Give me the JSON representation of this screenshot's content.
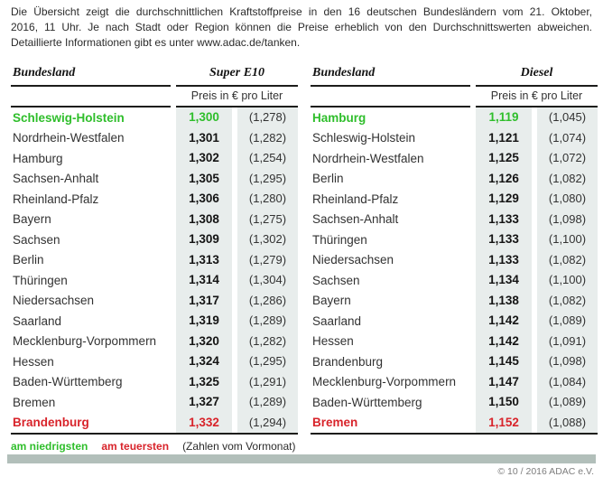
{
  "intro": {
    "lines": [
      "Die Übersicht zeigt die durchschnittlichen Kraftstoffpreise in den 16 deutschen Bundesländern vom 21. Oktober,",
      "2016, 11 Uhr. Je nach Stadt oder Region können die Preise erheblich von den Durchschnittswerten abweichen.",
      "Detaillierte Informationen gibt es unter www.adac.de/tanken."
    ]
  },
  "legend": {
    "lowest": "am niedrigsten",
    "highest": "am teuersten",
    "note": "(Zahlen vom Vormonat)"
  },
  "copyright": "© 10 / 2016 ADAC e.V.",
  "colors": {
    "lowest_green": "#2fbe2b",
    "highest_red": "#d8232a",
    "price_column_background": "#e8edec",
    "bottom_bar": "#b2bfba"
  },
  "chart_data": [
    {
      "type": "table",
      "title": "Super E10",
      "fuel": "Super E10",
      "state_header": "Bundesland",
      "subheader": "Preis in € pro Liter",
      "columns": [
        "Bundesland",
        "Preis in € pro Liter",
        "Vormonat"
      ],
      "rows": [
        {
          "state": "Schleswig-Holstein",
          "price": "1,300",
          "prev_month": "(1,278)",
          "highlight": "lowest"
        },
        {
          "state": "Nordrhein-Westfalen",
          "price": "1,301",
          "prev_month": "(1,282)"
        },
        {
          "state": "Hamburg",
          "price": "1,302",
          "prev_month": "(1,254)"
        },
        {
          "state": "Sachsen-Anhalt",
          "price": "1,305",
          "prev_month": "(1,295)"
        },
        {
          "state": "Rheinland-Pfalz",
          "price": "1,306",
          "prev_month": "(1,280)"
        },
        {
          "state": "Bayern",
          "price": "1,308",
          "prev_month": "(1,275)"
        },
        {
          "state": "Sachsen",
          "price": "1,309",
          "prev_month": "(1,302)"
        },
        {
          "state": "Berlin",
          "price": "1,313",
          "prev_month": "(1,279)"
        },
        {
          "state": "Thüringen",
          "price": "1,314",
          "prev_month": "(1,304)"
        },
        {
          "state": "Niedersachsen",
          "price": "1,317",
          "prev_month": "(1,286)"
        },
        {
          "state": "Saarland",
          "price": "1,319",
          "prev_month": "(1,289)"
        },
        {
          "state": "Mecklenburg-Vorpommern",
          "price": "1,320",
          "prev_month": "(1,282)"
        },
        {
          "state": "Hessen",
          "price": "1,324",
          "prev_month": "(1,295)"
        },
        {
          "state": "Baden-Württemberg",
          "price": "1,325",
          "prev_month": "(1,291)"
        },
        {
          "state": "Bremen",
          "price": "1,327",
          "prev_month": "(1,289)"
        },
        {
          "state": "Brandenburg",
          "price": "1,332",
          "prev_month": "(1,294)",
          "highlight": "highest"
        }
      ]
    },
    {
      "type": "table",
      "title": "Diesel",
      "fuel": "Diesel",
      "state_header": "Bundesland",
      "subheader": "Preis in € pro Liter",
      "columns": [
        "Bundesland",
        "Preis in € pro Liter",
        "Vormonat"
      ],
      "rows": [
        {
          "state": "Hamburg",
          "price": "1,119",
          "prev_month": "(1,045)",
          "highlight": "lowest"
        },
        {
          "state": "Schleswig-Holstein",
          "price": "1,121",
          "prev_month": "(1,074)"
        },
        {
          "state": "Nordrhein-Westfalen",
          "price": "1,125",
          "prev_month": "(1,072)"
        },
        {
          "state": "Berlin",
          "price": "1,126",
          "prev_month": "(1,082)"
        },
        {
          "state": "Rheinland-Pfalz",
          "price": "1,129",
          "prev_month": "(1,080)"
        },
        {
          "state": "Sachsen-Anhalt",
          "price": "1,133",
          "prev_month": "(1,098)"
        },
        {
          "state": "Thüringen",
          "price": "1,133",
          "prev_month": "(1,100)"
        },
        {
          "state": "Niedersachsen",
          "price": "1,133",
          "prev_month": "(1,082)"
        },
        {
          "state": "Sachsen",
          "price": "1,134",
          "prev_month": "(1,100)"
        },
        {
          "state": "Bayern",
          "price": "1,138",
          "prev_month": "(1,082)"
        },
        {
          "state": "Saarland",
          "price": "1,142",
          "prev_month": "(1,089)"
        },
        {
          "state": "Hessen",
          "price": "1,142",
          "prev_month": "(1,091)"
        },
        {
          "state": "Brandenburg",
          "price": "1,145",
          "prev_month": "(1,098)"
        },
        {
          "state": "Mecklenburg-Vorpommern",
          "price": "1,147",
          "prev_month": "(1,084)"
        },
        {
          "state": "Baden-Württemberg",
          "price": "1,150",
          "prev_month": "(1,089)"
        },
        {
          "state": "Bremen",
          "price": "1,152",
          "prev_month": "(1,088)",
          "highlight": "highest"
        }
      ]
    }
  ]
}
